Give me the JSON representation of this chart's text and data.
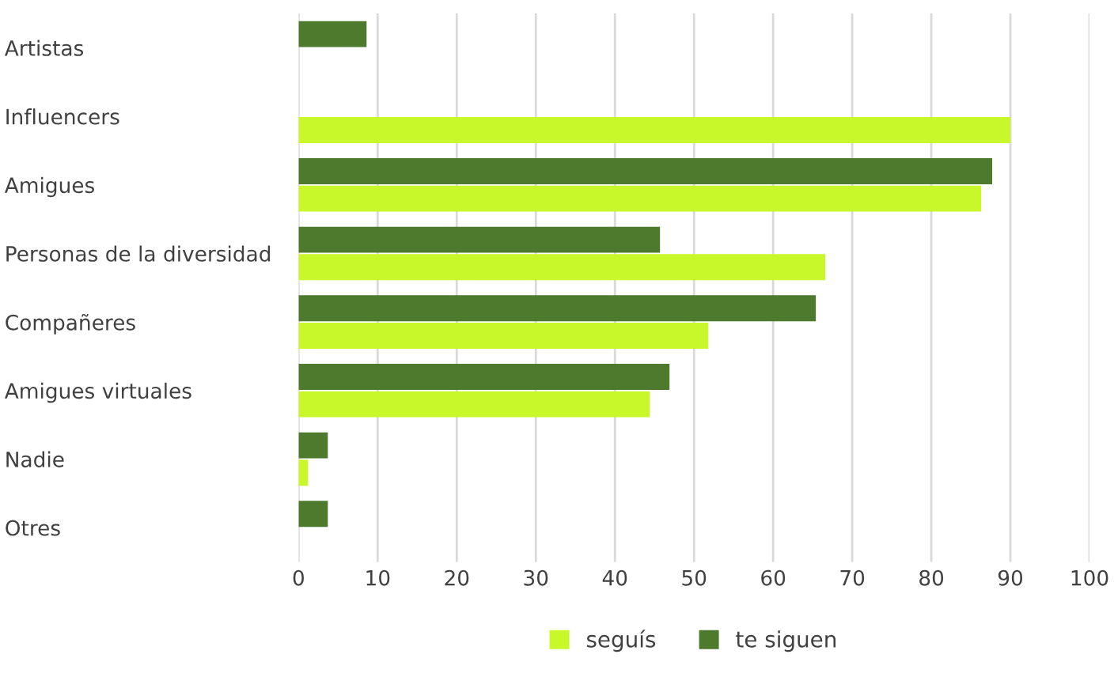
{
  "chart_data": {
    "type": "bar",
    "orientation": "horizontal",
    "categories": [
      "Artistas",
      "Influencers",
      "Amigues",
      "Personas de la diversidad",
      "Compañeres",
      "Amigues virtuales",
      "Nadie",
      "Otres"
    ],
    "series": [
      {
        "name": "seguís",
        "color": "#c8f82a",
        "values": [
          null,
          90,
          86.3,
          66.6,
          51.8,
          44.4,
          1.2,
          null
        ]
      },
      {
        "name": "te siguen",
        "color": "#4e7a2e",
        "values": [
          8.6,
          null,
          87.7,
          45.7,
          65.4,
          46.9,
          3.7,
          3.7
        ]
      }
    ],
    "xlim": [
      0,
      100
    ],
    "xticks": [
      0,
      10,
      20,
      30,
      40,
      50,
      60,
      70,
      80,
      90,
      100
    ],
    "grid": "x",
    "legend": "bottom"
  }
}
